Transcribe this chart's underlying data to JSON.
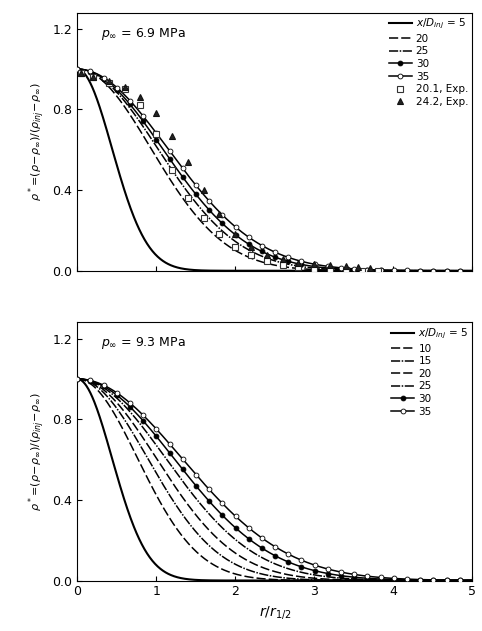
{
  "panel1": {
    "pressure_text": "p_\\infty = 6.9 MPa",
    "curves": [
      {
        "label": "5",
        "linestyle": "-",
        "marker": "",
        "lw": 1.5,
        "color": "#000000",
        "r_half": 0.52,
        "ms": 0,
        "mfc": "black"
      },
      {
        "label": "20",
        "linestyle": "--",
        "marker": "",
        "lw": 1.1,
        "color": "#000000",
        "r_half": 1.1,
        "ms": 0,
        "mfc": "black"
      },
      {
        "label": "25",
        "linestyle": "-.",
        "marker": "",
        "lw": 1.1,
        "color": "#000000",
        "r_half": 1.2,
        "ms": 0,
        "mfc": "black"
      },
      {
        "label": "30",
        "linestyle": "-",
        "marker": "o",
        "lw": 1.1,
        "color": "#000000",
        "r_half": 1.27,
        "ms": 3.5,
        "mfc": "black"
      },
      {
        "label": "35",
        "linestyle": "-",
        "marker": "o",
        "lw": 1.1,
        "color": "#000000",
        "r_half": 1.35,
        "ms": 3.5,
        "mfc": "white"
      }
    ],
    "exp_data": [
      {
        "label": "20.1, Exp.",
        "marker": "s",
        "x": [
          0.05,
          0.2,
          0.4,
          0.6,
          0.8,
          1.0,
          1.2,
          1.4,
          1.6,
          1.8,
          2.0,
          2.2,
          2.4,
          2.6,
          2.8,
          3.0,
          3.2,
          3.4,
          3.6,
          3.8
        ],
        "y": [
          0.98,
          0.96,
          0.93,
          0.9,
          0.82,
          0.68,
          0.5,
          0.36,
          0.26,
          0.18,
          0.12,
          0.08,
          0.05,
          0.03,
          0.02,
          0.01,
          0.005,
          0.002,
          0.001,
          0.0
        ],
        "mfc": "white",
        "mec": "#333333",
        "ms": 4
      },
      {
        "label": "24.2, Exp.",
        "marker": "^",
        "x": [
          0.05,
          0.2,
          0.4,
          0.6,
          0.8,
          1.0,
          1.2,
          1.4,
          1.6,
          1.8,
          2.0,
          2.2,
          2.4,
          2.6,
          2.8,
          3.0,
          3.2,
          3.4,
          3.55,
          3.7
        ],
        "y": [
          0.98,
          0.96,
          0.94,
          0.91,
          0.86,
          0.78,
          0.67,
          0.54,
          0.4,
          0.28,
          0.18,
          0.12,
          0.08,
          0.06,
          0.04,
          0.035,
          0.03,
          0.025,
          0.02,
          0.015
        ],
        "mfc": "#222222",
        "mec": "#111111",
        "ms": 4
      }
    ]
  },
  "panel2": {
    "pressure_text": "p_\\infty = 9.3 MPa",
    "curves": [
      {
        "label": "5",
        "linestyle": "-",
        "marker": "",
        "lw": 1.5,
        "color": "#000000",
        "r_half": 0.52,
        "ms": 0,
        "mfc": "black"
      },
      {
        "label": "10",
        "linestyle": "--",
        "marker": "",
        "lw": 1.1,
        "color": "#000000",
        "r_half": 0.9,
        "ms": 0,
        "mfc": "black"
      },
      {
        "label": "15",
        "linestyle": "-.",
        "marker": "",
        "lw": 1.1,
        "color": "#000000",
        "r_half": 1.05,
        "ms": 0,
        "mfc": "black"
      },
      {
        "label": "20",
        "linestyle": "--",
        "marker": "",
        "lw": 1.1,
        "color": "#000000",
        "r_half": 1.18,
        "ms": 0,
        "mfc": "black"
      },
      {
        "label": "25",
        "linestyle": "-.",
        "marker": "",
        "lw": 1.1,
        "color": "#000000",
        "r_half": 1.32,
        "ms": 0,
        "mfc": "black"
      },
      {
        "label": "30",
        "linestyle": "-",
        "marker": "o",
        "lw": 1.1,
        "color": "#000000",
        "r_half": 1.44,
        "ms": 3.5,
        "mfc": "black"
      },
      {
        "label": "35",
        "linestyle": "-",
        "marker": "o",
        "lw": 1.1,
        "color": "#000000",
        "r_half": 1.56,
        "ms": 3.5,
        "mfc": "white"
      }
    ]
  },
  "xlim": [
    0,
    5
  ],
  "ylim": [
    0.0,
    1.28
  ],
  "yticks": [
    0.0,
    0.4,
    0.8,
    1.2
  ],
  "xticks": [
    0,
    1,
    2,
    3,
    4,
    5
  ],
  "markevery": 20
}
